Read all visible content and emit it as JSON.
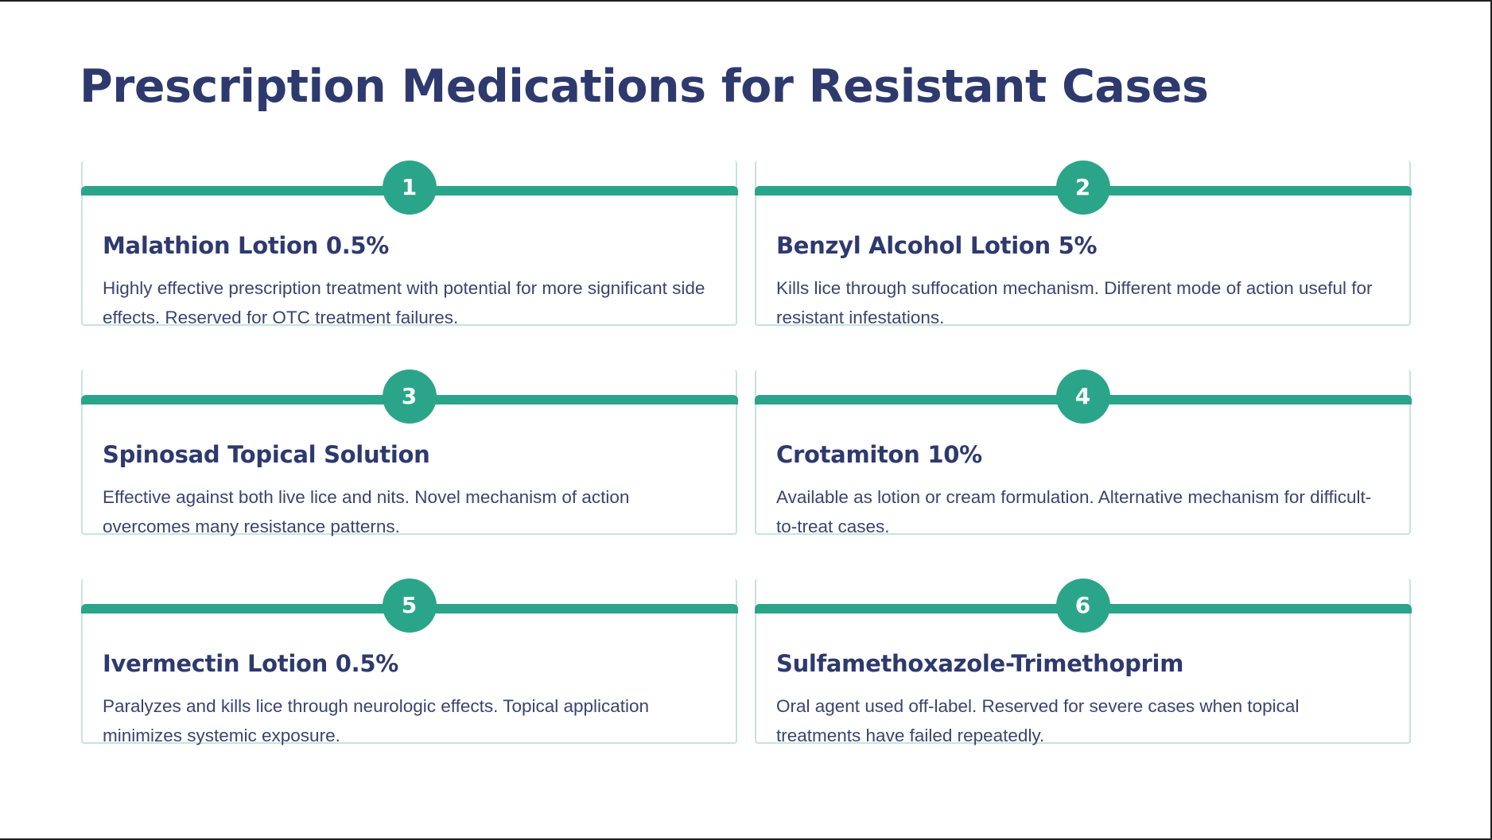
{
  "page": {
    "title": "Prescription Medications for Resistant Cases"
  },
  "colors": {
    "title": "#2e3a6e",
    "accent": "#2ba589",
    "card_border": "#c6e4dc",
    "body_text": "#3a4470"
  },
  "cards": [
    {
      "number": "1",
      "title": "Malathion Lotion 0.5%",
      "description": "Highly effective prescription treatment with potential for more significant side effects. Reserved for OTC treatment failures."
    },
    {
      "number": "2",
      "title": "Benzyl Alcohol Lotion 5%",
      "description": "Kills lice through suffocation mechanism. Different mode of action useful for resistant infestations."
    },
    {
      "number": "3",
      "title": "Spinosad Topical Solution",
      "description": "Effective against both live lice and nits. Novel mechanism of action overcomes many resistance patterns."
    },
    {
      "number": "4",
      "title": "Crotamiton 10%",
      "description": "Available as lotion or cream formulation. Alternative mechanism for difficult-to-treat cases."
    },
    {
      "number": "5",
      "title": "Ivermectin Lotion 0.5%",
      "description": "Paralyzes and kills lice through neurologic effects. Topical application minimizes systemic exposure."
    },
    {
      "number": "6",
      "title": "Sulfamethoxazole-Trimethoprim",
      "description": "Oral agent used off-label. Reserved for severe cases when topical treatments have failed repeatedly."
    }
  ]
}
